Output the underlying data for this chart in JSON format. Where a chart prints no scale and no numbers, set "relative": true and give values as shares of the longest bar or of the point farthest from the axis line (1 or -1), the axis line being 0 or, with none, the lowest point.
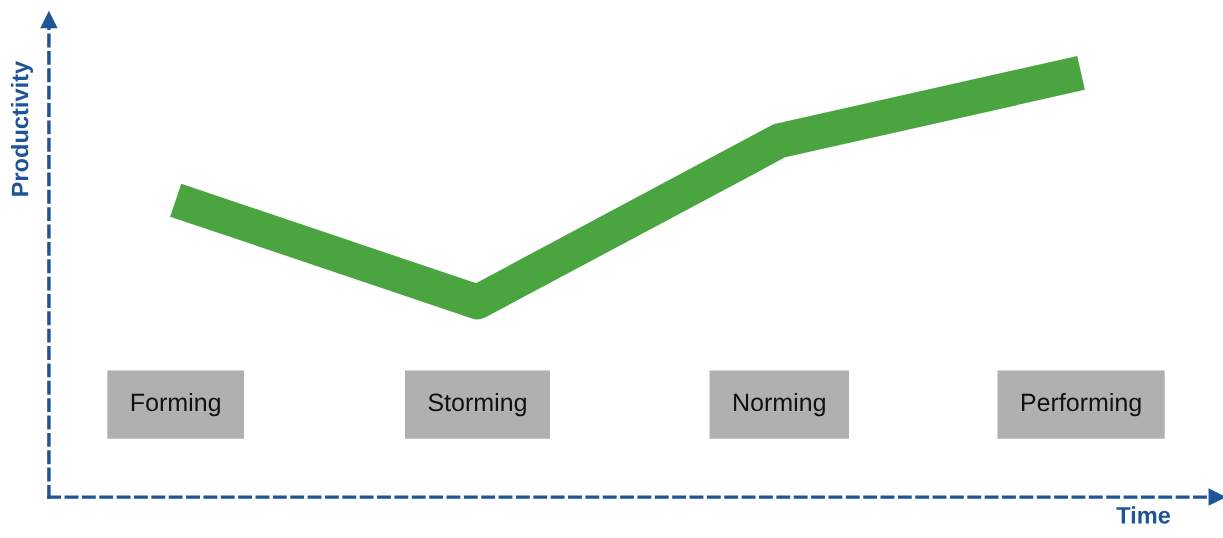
{
  "chart_data": {
    "type": "line",
    "relative": true,
    "xlabel": "Time",
    "ylabel": "Productivity",
    "categories": [
      "Forming",
      "Storming",
      "Norming",
      "Performing"
    ],
    "series": [
      {
        "color": "#4aa540",
        "values": [
          0.7,
          0.46,
          0.84,
          1.0
        ]
      }
    ],
    "grid": false,
    "legend": false,
    "marker": "none",
    "line_style": "solid"
  }
}
